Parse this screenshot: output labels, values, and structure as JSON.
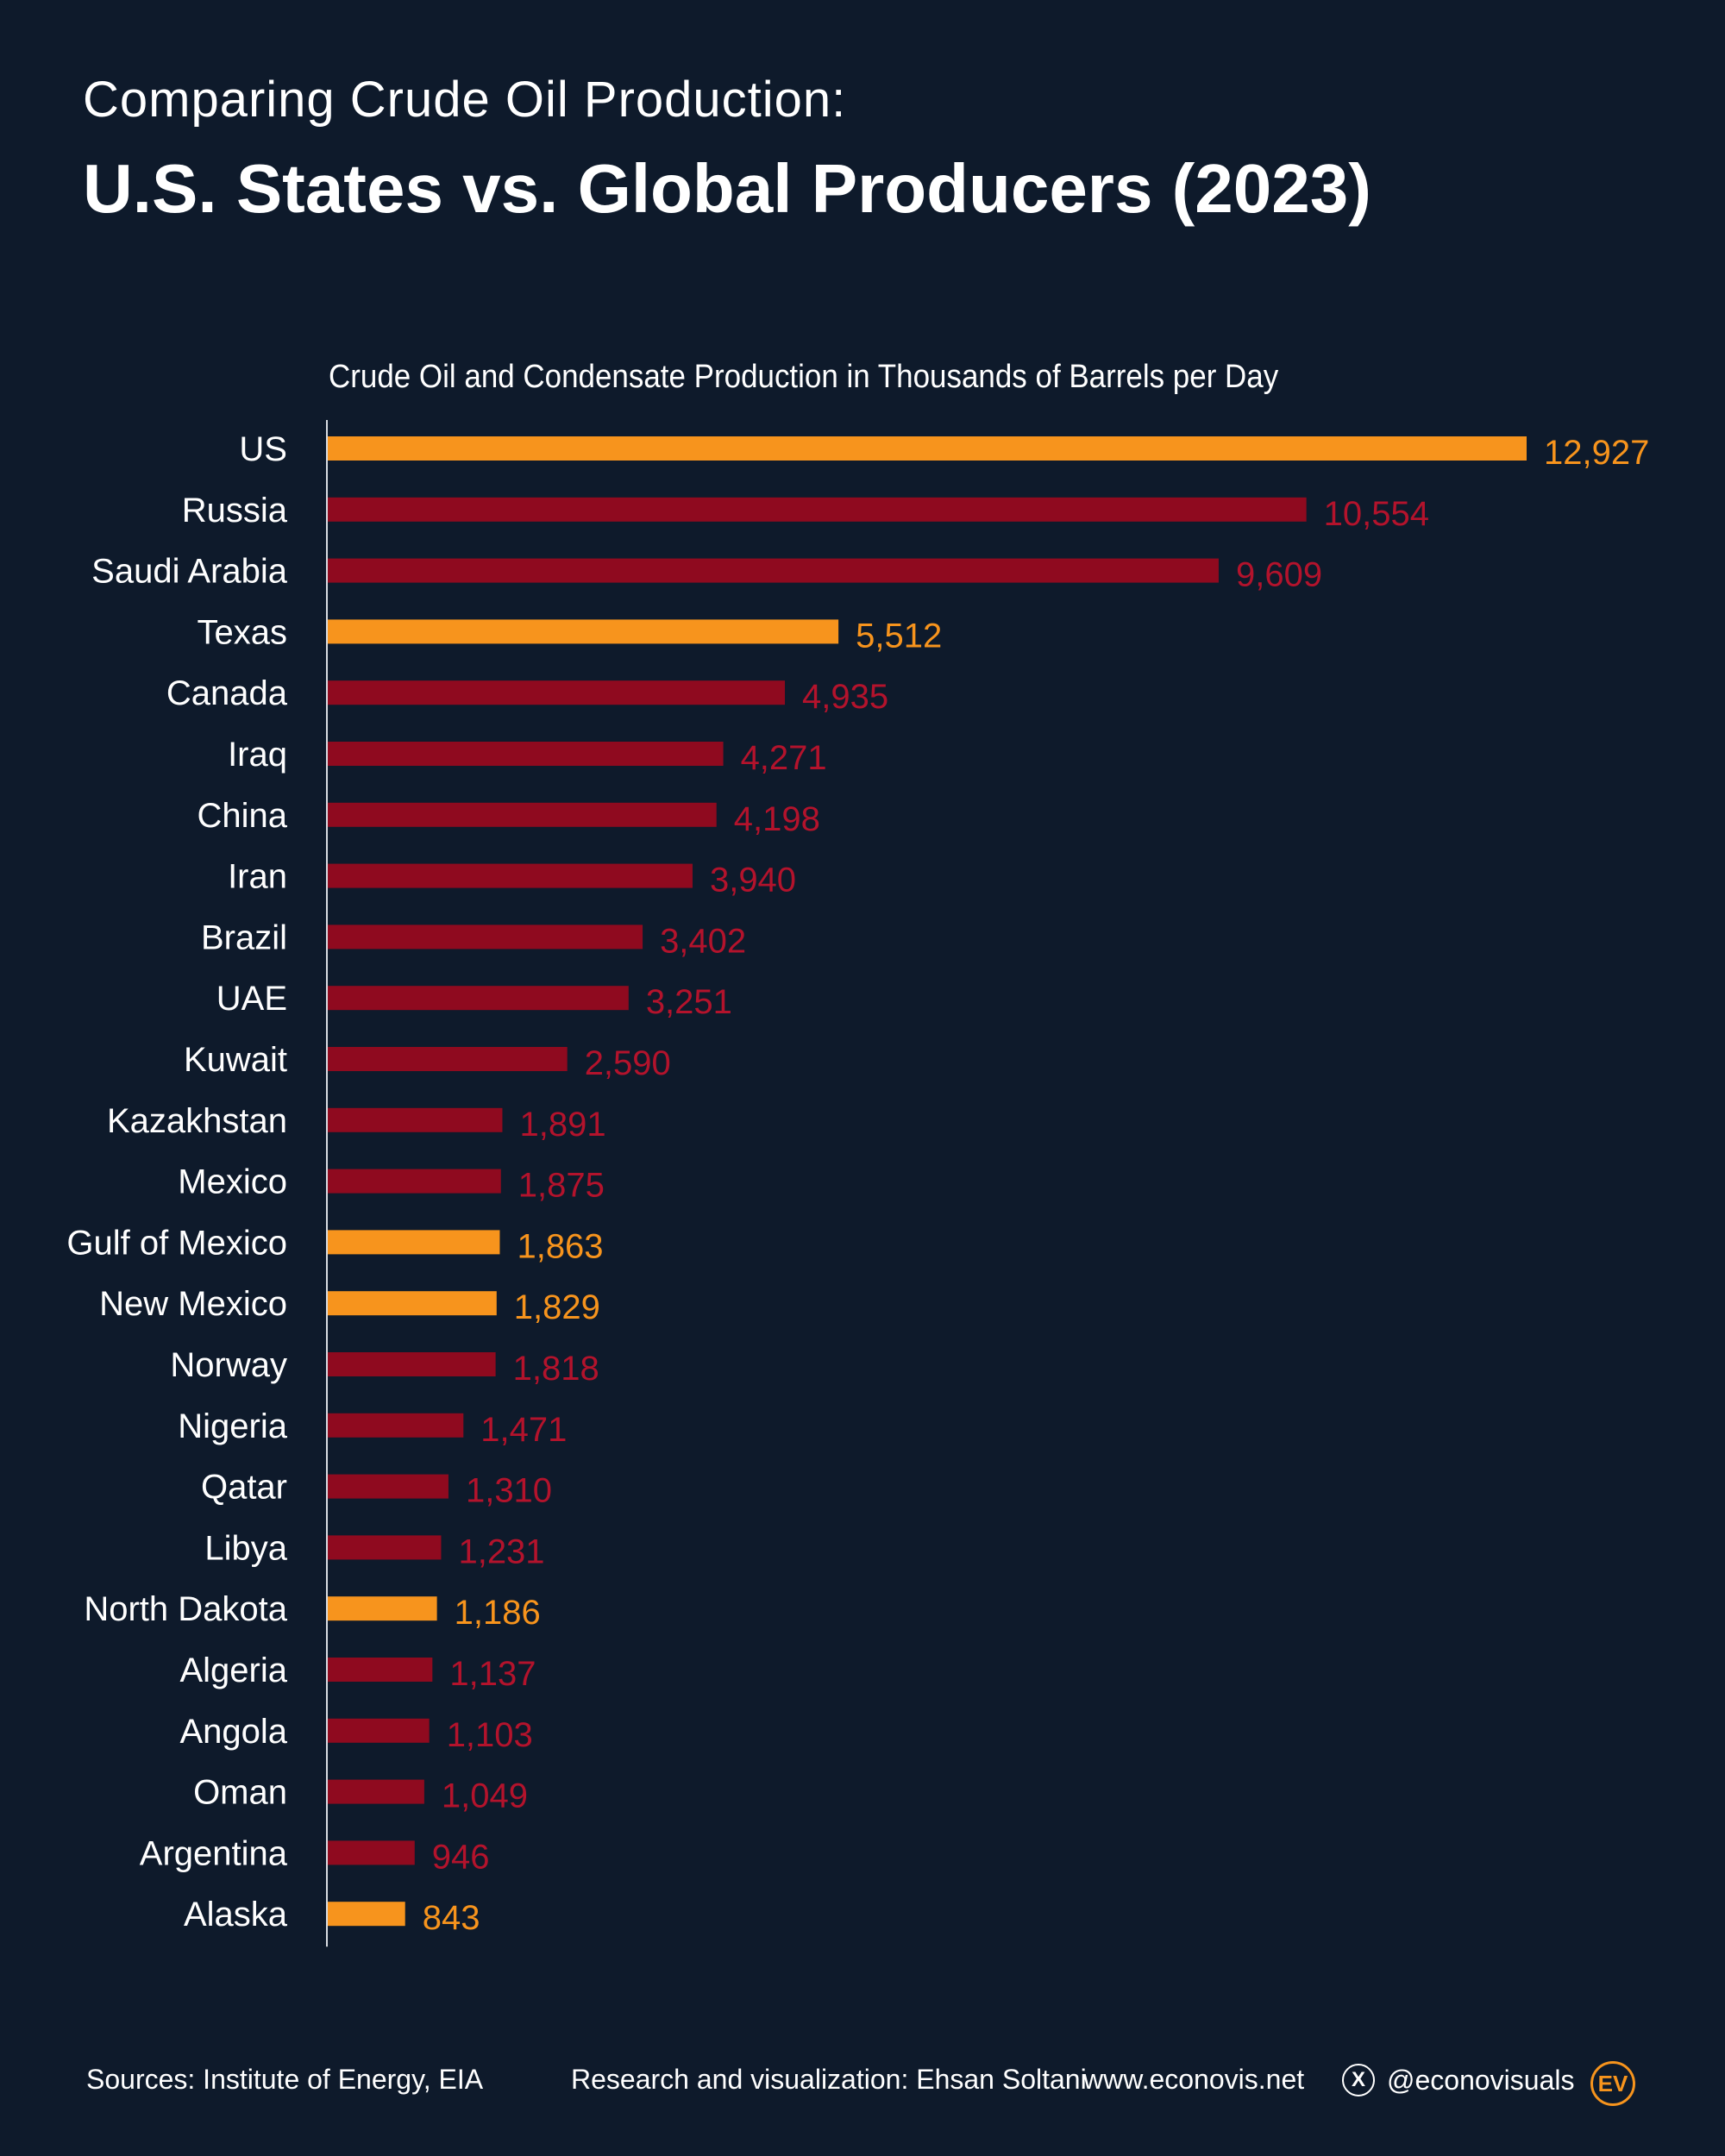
{
  "header": {
    "subtitle": "Comparing Crude Oil Production:",
    "title": "U.S. States vs. Global Producers (2023)"
  },
  "chart_data": {
    "type": "bar",
    "orientation": "horizontal",
    "title": "Crude Oil and Condensate Production in Thousands of Barrels per Day",
    "categories": [
      "US",
      "Russia",
      "Saudi Arabia",
      "Texas",
      "Canada",
      "Iraq",
      "China",
      "Iran",
      "Brazil",
      "UAE",
      "Kuwait",
      "Kazakhstan",
      "Mexico",
      "Gulf of Mexico",
      "New Mexico",
      "Norway",
      "Nigeria",
      "Qatar",
      "Libya",
      "North Dakota",
      "Algeria",
      "Angola",
      "Oman",
      "Argentina",
      "Alaska"
    ],
    "values": [
      12927,
      10554,
      9609,
      5512,
      4935,
      4271,
      4198,
      3940,
      3402,
      3251,
      2590,
      1891,
      1875,
      1863,
      1829,
      1818,
      1471,
      1310,
      1231,
      1186,
      1137,
      1103,
      1049,
      946,
      843
    ],
    "value_labels": [
      "12,927",
      "10,554",
      "9,609",
      "5,512",
      "4,935",
      "4,271",
      "4,198",
      "3,940",
      "3,402",
      "3,251",
      "2,590",
      "1,891",
      "1,875",
      "1,863",
      "1,829",
      "1,818",
      "1,471",
      "1,310",
      "1,231",
      "1,186",
      "1,137",
      "1,103",
      "1,049",
      "946",
      "843"
    ],
    "group": [
      "us",
      "global",
      "global",
      "us",
      "global",
      "global",
      "global",
      "global",
      "global",
      "global",
      "global",
      "global",
      "global",
      "us",
      "us",
      "global",
      "global",
      "global",
      "global",
      "us",
      "global",
      "global",
      "global",
      "global",
      "us"
    ],
    "colors": {
      "us": "#f7941d",
      "global": "#8f0a1f",
      "global_label": "#b3132c"
    },
    "xlim": [
      0,
      12927
    ],
    "grid": false
  },
  "footer": {
    "sources": "Sources: Institute of Energy, EIA",
    "credit": "Research and visualization: Ehsan Soltani",
    "website": "www.econovis.net",
    "x_icon_glyph": "X",
    "handle": "@econovisuals",
    "logo_text": "EV"
  }
}
